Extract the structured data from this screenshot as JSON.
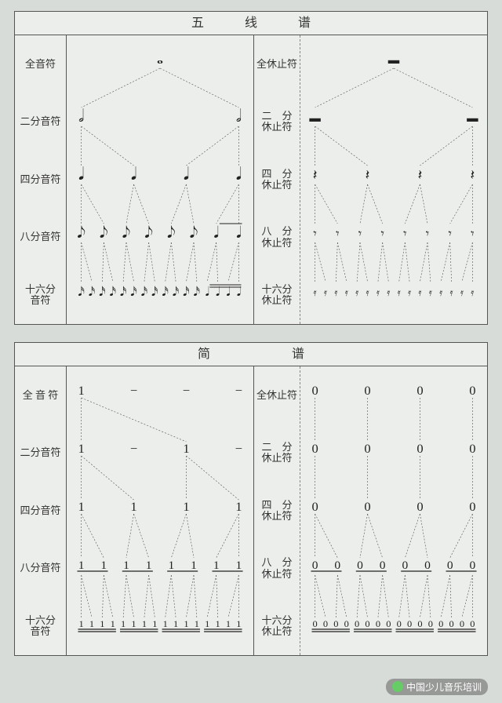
{
  "staff": {
    "title": "五 线 谱",
    "noteLabels": [
      "全音符",
      "二分音符",
      "四分音符",
      "八分音符",
      "十六分\n音符"
    ],
    "restLabels": [
      "全休止符",
      "二　分\n休止符",
      "四　分\n休止符",
      "八　分\n休止符",
      "十六分\n休止符"
    ],
    "noteGlyphs": {
      "whole": "𝅝",
      "half": "𝅗𝅥",
      "quarter": "𝅘𝅥",
      "eighth": "𝅘𝅥𝅮",
      "sixteenth": "𝅘𝅥𝅯"
    },
    "restGlyphs": {
      "whole": "▬",
      "half": "▬",
      "quarter": "𝄽",
      "eighth": "𝄾",
      "sixteenth": "𝄿"
    }
  },
  "jianpu": {
    "title": "简　　谱",
    "noteLabels": [
      "全 音 符",
      "二分音符",
      "四分音符",
      "八分音符",
      "十六分\n音符"
    ],
    "restLabels": [
      "全休止符",
      "二　分\n休止符",
      "四　分\n休止符",
      "八　分\n休止符",
      "十六分\n休止符"
    ],
    "noteChar": "1",
    "restChar": "0",
    "dash": "−"
  },
  "watermark": "中国少儿音乐培训",
  "colors": {
    "bg": "#d8dcd8",
    "panel": "#eceeeb",
    "line": "#555555"
  }
}
